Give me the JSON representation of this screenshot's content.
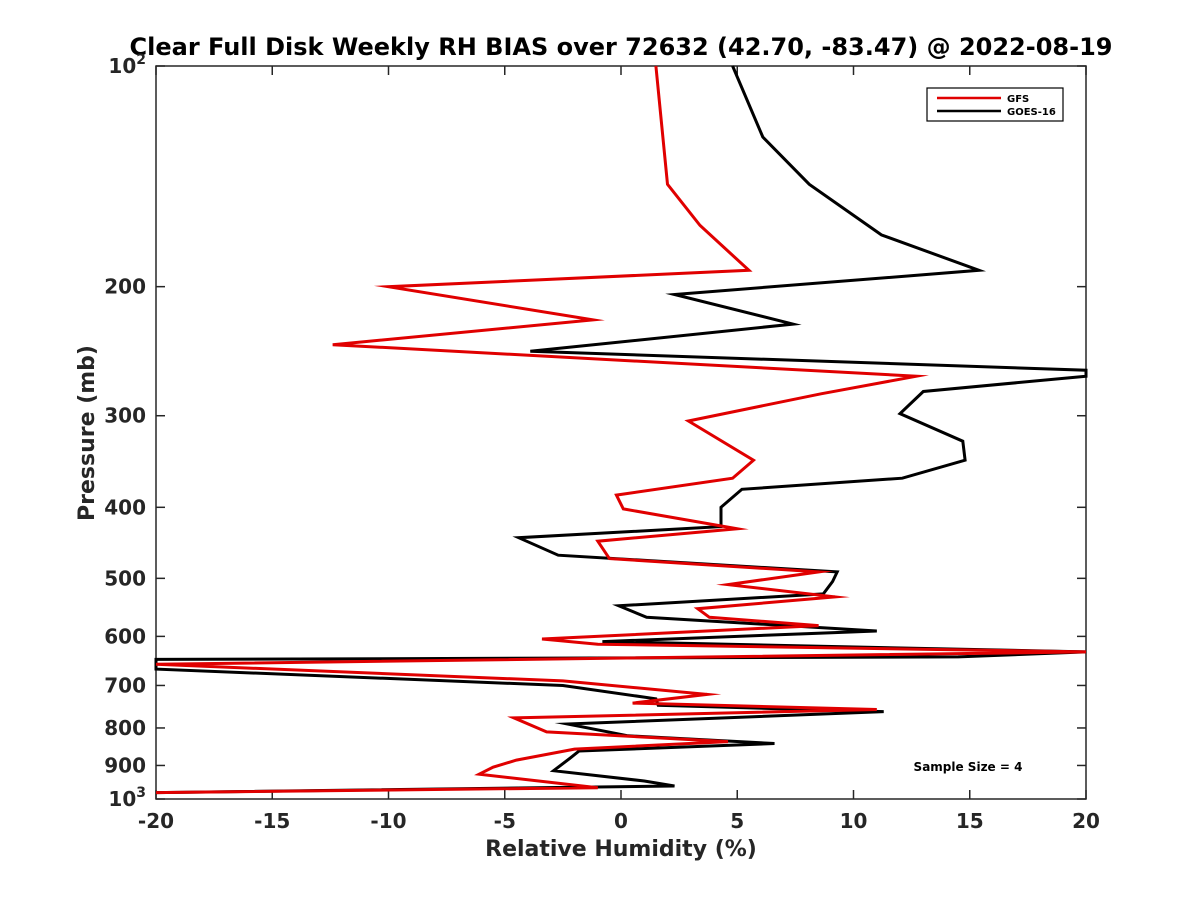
{
  "chart_data": {
    "type": "line",
    "title": "Clear Full Disk Weekly RH BIAS over 72632 (42.70, -83.47) @ 2022-08-19",
    "xlabel": "Relative Humidity (%)",
    "ylabel": "Pressure (mb)",
    "xlim": [
      -20,
      20
    ],
    "ylim": [
      100,
      1000
    ],
    "y_scale": "log",
    "y_reversed": true,
    "x_ticks": [
      "-20",
      "-15",
      "-10",
      "-5",
      "0",
      "5",
      "10",
      "15",
      "20"
    ],
    "y_ticks": [
      {
        "value": 100,
        "base": "10",
        "exp": "2"
      },
      {
        "value": 200,
        "base": "200",
        "exp": ""
      },
      {
        "value": 300,
        "base": "300",
        "exp": ""
      },
      {
        "value": 400,
        "base": "400",
        "exp": ""
      },
      {
        "value": 500,
        "base": "500",
        "exp": ""
      },
      {
        "value": 600,
        "base": "600",
        "exp": ""
      },
      {
        "value": 700,
        "base": "700",
        "exp": ""
      },
      {
        "value": 800,
        "base": "800",
        "exp": ""
      },
      {
        "value": 900,
        "base": "900",
        "exp": ""
      },
      {
        "value": 1000,
        "base": "10",
        "exp": "3"
      }
    ],
    "legend_position": "top-right",
    "annotation": "Sample Size = 4",
    "series": [
      {
        "name": "GFS",
        "color": "#e00000",
        "x": [
          1.5,
          2.0,
          3.4,
          5.5,
          -10.0,
          -1.2,
          -12.4,
          12.7,
          8.6,
          2.9,
          5.7,
          4.8,
          -0.2,
          0.1,
          5.0,
          -1.0,
          -0.5,
          8.5,
          4.6,
          9.2,
          3.3,
          3.8,
          8.5,
          -3.4,
          -1.0,
          20.0,
          -20.0,
          -2.5,
          3.7,
          0.5,
          11.0,
          -4.6,
          -3.2,
          4.6,
          -2.0,
          -4.5,
          -5.5,
          -6.1,
          -1.0,
          -20.0
        ],
        "y": [
          100,
          145,
          165,
          190,
          200,
          222,
          240,
          265,
          280,
          305,
          345,
          365,
          385,
          402,
          428,
          445,
          470,
          490,
          510,
          530,
          550,
          565,
          580,
          605,
          615,
          630,
          655,
          690,
          720,
          740,
          755,
          775,
          810,
          835,
          855,
          885,
          905,
          925,
          965,
          980
        ]
      },
      {
        "name": "GOES-16",
        "color": "#000000",
        "x": [
          4.8,
          6.1,
          8.1,
          11.2,
          15.4,
          2.3,
          7.4,
          -3.9,
          20.0,
          20.0,
          13.0,
          12.0,
          14.7,
          14.8,
          12.1,
          5.2,
          4.3,
          4.3,
          -4.4,
          -2.7,
          9.3,
          9.1,
          8.7,
          -0.1,
          1.1,
          11.0,
          -0.8,
          20.0,
          14.5,
          -20.0,
          -20.0,
          -2.5,
          1.5,
          1.6,
          11.3,
          -2.3,
          0.3,
          6.6,
          -1.8,
          -2.2,
          -2.9,
          1.0,
          2.3,
          -20.0
        ],
        "y": [
          100,
          125,
          145,
          170,
          190,
          205,
          225,
          245,
          260,
          265,
          278,
          298,
          325,
          345,
          365,
          378,
          400,
          425,
          440,
          465,
          490,
          505,
          525,
          545,
          565,
          590,
          610,
          630,
          640,
          645,
          665,
          700,
          730,
          745,
          760,
          790,
          820,
          840,
          860,
          880,
          915,
          945,
          960,
          980
        ]
      }
    ]
  }
}
